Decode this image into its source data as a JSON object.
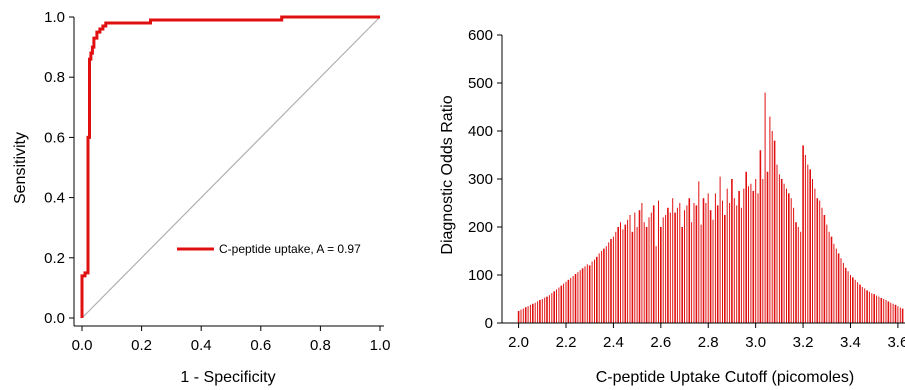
{
  "chart_data": [
    {
      "type": "line",
      "xlabel": "1 - Specificity",
      "ylabel": "Sensitivity",
      "xlim": [
        0.0,
        1.0
      ],
      "ylim": [
        0.0,
        1.0
      ],
      "xticks": [
        "0.0",
        "0.2",
        "0.4",
        "0.6",
        "0.8",
        "1.0"
      ],
      "yticks": [
        "0.0",
        "0.2",
        "0.4",
        "0.6",
        "0.8",
        "1.0"
      ],
      "grid": false,
      "legend_position": "lower-right",
      "series": [
        {
          "name": "C-peptide uptake, A = 0.97",
          "color": "#e01010",
          "x": [
            0.0,
            0.0,
            0.01,
            0.01,
            0.02,
            0.02,
            0.025,
            0.025,
            0.03,
            0.03,
            0.035,
            0.035,
            0.04,
            0.04,
            0.05,
            0.05,
            0.06,
            0.06,
            0.07,
            0.07,
            0.08,
            0.08,
            0.09,
            0.09,
            0.1,
            0.1,
            0.23,
            0.23,
            0.67,
            0.67,
            1.0
          ],
          "y": [
            0.0,
            0.14,
            0.14,
            0.15,
            0.15,
            0.6,
            0.6,
            0.86,
            0.86,
            0.88,
            0.88,
            0.9,
            0.9,
            0.93,
            0.93,
            0.95,
            0.95,
            0.96,
            0.96,
            0.97,
            0.97,
            0.98,
            0.98,
            0.98,
            0.98,
            0.98,
            0.98,
            0.99,
            0.99,
            1.0,
            1.0
          ]
        },
        {
          "name": "",
          "color": "#b0b0b0",
          "x": [
            0.0,
            1.0
          ],
          "y": [
            0.0,
            1.0
          ]
        }
      ]
    },
    {
      "type": "bar",
      "xlabel": "C-peptide Uptake Cutoff (picomoles)",
      "ylabel": "Diagnostic Odds Ratio",
      "xlim": [
        1.93,
        3.63
      ],
      "ylim": [
        0,
        600
      ],
      "xticks": [
        "2.0",
        "2.2",
        "2.4",
        "2.6",
        "2.8",
        "3.0",
        "3.2",
        "3.4",
        "3.6"
      ],
      "yticks": [
        "0",
        "100",
        "200",
        "300",
        "400",
        "500",
        "600"
      ],
      "grid": false,
      "color": "#e01010",
      "x": [
        2.0,
        2.01,
        2.02,
        2.03,
        2.04,
        2.05,
        2.06,
        2.07,
        2.08,
        2.09,
        2.1,
        2.11,
        2.12,
        2.13,
        2.14,
        2.15,
        2.16,
        2.17,
        2.18,
        2.19,
        2.2,
        2.21,
        2.22,
        2.23,
        2.24,
        2.25,
        2.26,
        2.27,
        2.28,
        2.29,
        2.3,
        2.31,
        2.32,
        2.33,
        2.34,
        2.35,
        2.36,
        2.37,
        2.38,
        2.39,
        2.4,
        2.41,
        2.42,
        2.43,
        2.44,
        2.45,
        2.46,
        2.47,
        2.48,
        2.49,
        2.5,
        2.51,
        2.52,
        2.53,
        2.54,
        2.55,
        2.56,
        2.57,
        2.58,
        2.59,
        2.6,
        2.61,
        2.62,
        2.63,
        2.64,
        2.65,
        2.66,
        2.67,
        2.68,
        2.69,
        2.7,
        2.71,
        2.72,
        2.73,
        2.74,
        2.75,
        2.76,
        2.77,
        2.78,
        2.79,
        2.8,
        2.81,
        2.82,
        2.83,
        2.84,
        2.85,
        2.86,
        2.87,
        2.88,
        2.89,
        2.9,
        2.91,
        2.92,
        2.93,
        2.94,
        2.95,
        2.96,
        2.97,
        2.98,
        2.99,
        3.0,
        3.01,
        3.02,
        3.03,
        3.04,
        3.05,
        3.06,
        3.07,
        3.08,
        3.09,
        3.1,
        3.11,
        3.12,
        3.13,
        3.14,
        3.15,
        3.16,
        3.17,
        3.18,
        3.19,
        3.2,
        3.21,
        3.22,
        3.23,
        3.24,
        3.25,
        3.26,
        3.27,
        3.28,
        3.29,
        3.3,
        3.31,
        3.32,
        3.33,
        3.34,
        3.35,
        3.36,
        3.37,
        3.38,
        3.39,
        3.4,
        3.41,
        3.42,
        3.43,
        3.44,
        3.45,
        3.46,
        3.47,
        3.48,
        3.49,
        3.5,
        3.51,
        3.52,
        3.53,
        3.54,
        3.55,
        3.56,
        3.57,
        3.58,
        3.59,
        3.6,
        3.61,
        3.62
      ],
      "values": [
        25,
        28,
        30,
        33,
        35,
        38,
        40,
        42,
        45,
        48,
        50,
        53,
        55,
        58,
        62,
        66,
        70,
        74,
        78,
        82,
        86,
        90,
        94,
        98,
        102,
        106,
        110,
        114,
        118,
        122,
        120,
        128,
        132,
        138,
        145,
        150,
        155,
        160,
        168,
        175,
        180,
        190,
        200,
        210,
        195,
        205,
        215,
        225,
        190,
        230,
        200,
        235,
        250,
        210,
        200,
        220,
        230,
        245,
        160,
        255,
        200,
        220,
        225,
        240,
        230,
        260,
        230,
        240,
        250,
        200,
        235,
        245,
        260,
        210,
        250,
        245,
        295,
        205,
        260,
        250,
        270,
        235,
        215,
        270,
        245,
        305,
        255,
        225,
        280,
        250,
        300,
        260,
        245,
        275,
        240,
        280,
        315,
        285,
        290,
        275,
        300,
        270,
        360,
        300,
        480,
        315,
        430,
        400,
        380,
        330,
        310,
        300,
        290,
        280,
        270,
        260,
        240,
        210,
        200,
        190,
        370,
        350,
        330,
        320,
        300,
        280,
        260,
        255,
        240,
        225,
        205,
        190,
        180,
        165,
        155,
        145,
        135,
        125,
        115,
        108,
        100,
        95,
        90,
        85,
        80,
        75,
        72,
        68,
        65,
        62,
        60,
        57,
        55,
        52,
        50,
        48,
        45,
        42,
        40,
        38,
        35,
        32,
        30
      ]
    }
  ]
}
